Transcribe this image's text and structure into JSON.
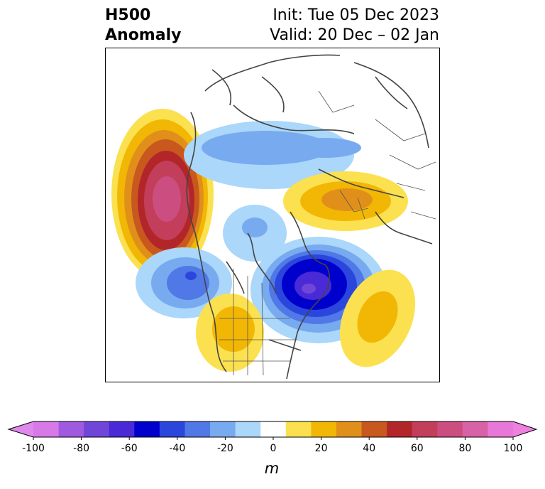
{
  "title": {
    "variable": "H500",
    "kind": "Anomaly",
    "init": "Init: Tue 05 Dec 2023",
    "valid": "Valid: 20 Dec – 02 Jan"
  },
  "colorbar": {
    "unit": "m",
    "ticks": [
      "-100",
      "-80",
      "-60",
      "-40",
      "-20",
      "0",
      "20",
      "40",
      "60",
      "80",
      "100"
    ],
    "levels": [
      -100,
      -90,
      -80,
      -70,
      -60,
      -50,
      -40,
      -30,
      -20,
      -10,
      10,
      20,
      30,
      40,
      50,
      60,
      70,
      80,
      90,
      100
    ],
    "colors": [
      "#d77ae8",
      "#a05ae0",
      "#7046d8",
      "#4a2ad6",
      "#0000cc",
      "#2b46dc",
      "#5078e6",
      "#78aaf0",
      "#aad7fa",
      "#ffffff",
      "#fbe150",
      "#f2b704",
      "#e0901a",
      "#c8581e",
      "#b2262a",
      "#c23e5a",
      "#cc4e80",
      "#d862a6",
      "#e878d8"
    ],
    "under_color": "#e088ec",
    "over_color": "#ee80e0"
  },
  "anomaly_centers": [
    {
      "region": "Northeast Pacific / Gulf of Alaska",
      "sign": "positive",
      "peak_m": 80
    },
    {
      "region": "Northern Europe / Scandinavia",
      "sign": "positive",
      "peak_m": 40
    },
    {
      "region": "Southwestern United States",
      "sign": "positive",
      "peak_m": 30
    },
    {
      "region": "Central North Atlantic",
      "sign": "positive",
      "peak_m": 30
    },
    {
      "region": "Eastern Canada / Hudson Bay",
      "sign": "negative",
      "peak_m": -70
    },
    {
      "region": "Eastern North Pacific",
      "sign": "negative",
      "peak_m": -40
    },
    {
      "region": "Siberia / Arctic",
      "sign": "negative",
      "peak_m": -30
    },
    {
      "region": "Arctic Ocean",
      "sign": "negative",
      "peak_m": -20
    }
  ]
}
